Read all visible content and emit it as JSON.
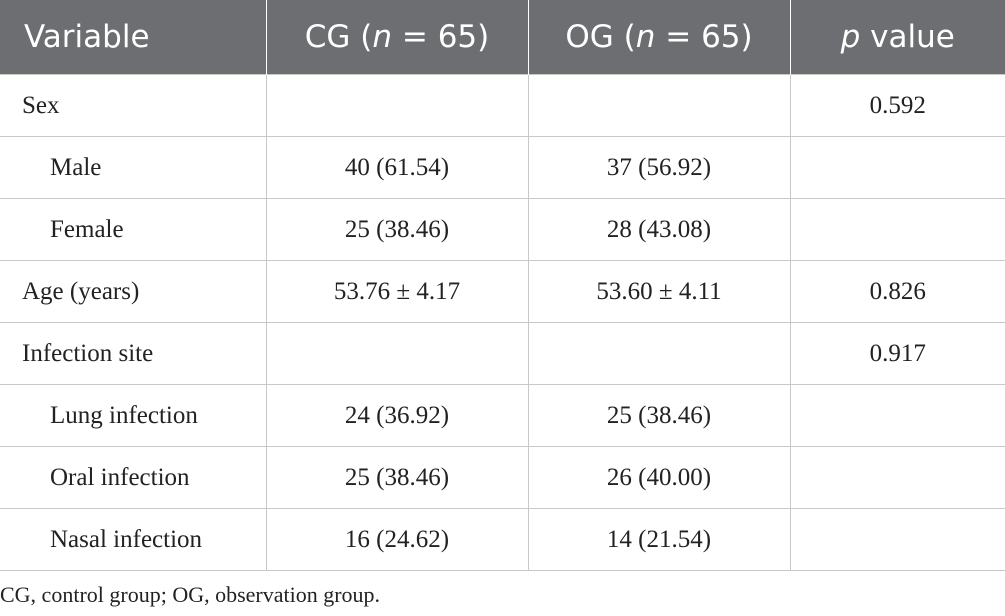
{
  "header": {
    "variable": "Variable",
    "cg_prefix": "CG (",
    "n_symbol": "n",
    "cg_suffix": " = 65)",
    "og_prefix": "OG (",
    "og_suffix": " = 65)",
    "p_symbol": "p",
    "p_suffix": " value"
  },
  "rows": [
    {
      "variable": "Sex",
      "cg": "",
      "og": "",
      "p": "0.592"
    },
    {
      "variable": "Male",
      "cg": "40 (61.54)",
      "og": "37 (56.92)",
      "p": ""
    },
    {
      "variable": "Female",
      "cg": "25 (38.46)",
      "og": "28 (43.08)",
      "p": ""
    },
    {
      "variable": "Age (years)",
      "cg": "53.76 ± 4.17",
      "og": "53.60 ± 4.11",
      "p": "0.826"
    },
    {
      "variable": "Infection site",
      "cg": "",
      "og": "",
      "p": "0.917"
    },
    {
      "variable": "Lung infection",
      "cg": "24 (36.92)",
      "og": "25 (38.46)",
      "p": ""
    },
    {
      "variable": "Oral infection",
      "cg": "25 (38.46)",
      "og": "26 (40.00)",
      "p": ""
    },
    {
      "variable": "Nasal infection",
      "cg": "16 (24.62)",
      "og": "14 (21.54)",
      "p": ""
    }
  ],
  "footnote": "CG, control group; OG, observation group."
}
